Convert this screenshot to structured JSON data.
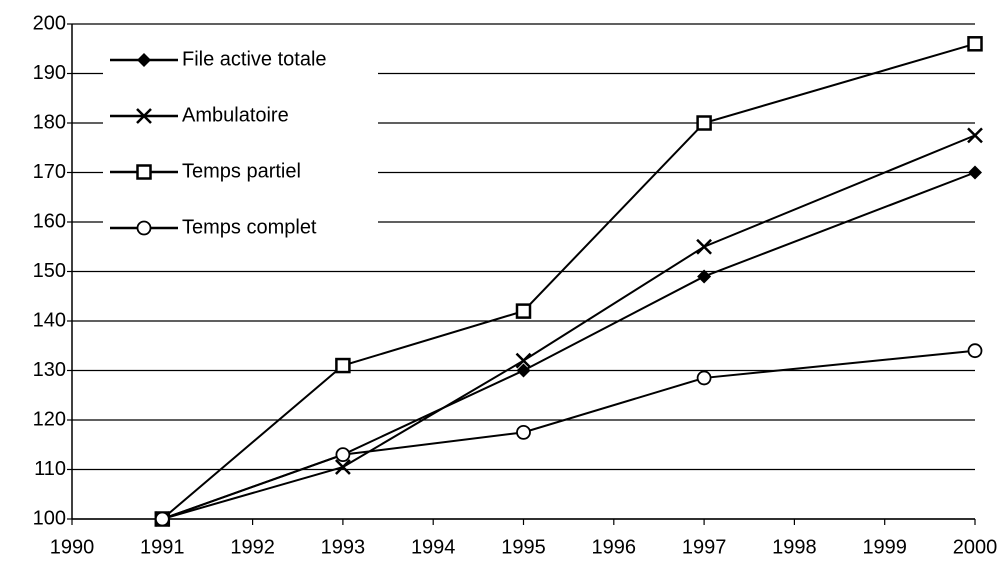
{
  "chart_data": {
    "type": "line",
    "x": [
      1991,
      1993,
      1995,
      1997,
      2000
    ],
    "series": [
      {
        "name": "File active totale",
        "color": "#000000",
        "marker": "diamond",
        "values": [
          100,
          113,
          130,
          149,
          170
        ]
      },
      {
        "name": "Ambulatoire",
        "color": "#000000",
        "marker": "x",
        "values": [
          100,
          110.5,
          132,
          155,
          177.5
        ]
      },
      {
        "name": "Temps partiel",
        "color": "#000000",
        "marker": "square",
        "values": [
          100,
          131,
          142,
          180,
          196
        ]
      },
      {
        "name": "Temps complet",
        "color": "#000000",
        "marker": "circle",
        "values": [
          100,
          113,
          117.5,
          128.5,
          134
        ]
      }
    ],
    "xlim": [
      1990,
      2000
    ],
    "xticks": [
      1990,
      1991,
      1992,
      1993,
      1994,
      1995,
      1996,
      1997,
      1998,
      1999,
      2000
    ],
    "ylim": [
      100,
      200
    ],
    "yticks": [
      100,
      110,
      120,
      130,
      140,
      150,
      160,
      170,
      180,
      190,
      200
    ],
    "grid": true,
    "legend": "upper left"
  }
}
